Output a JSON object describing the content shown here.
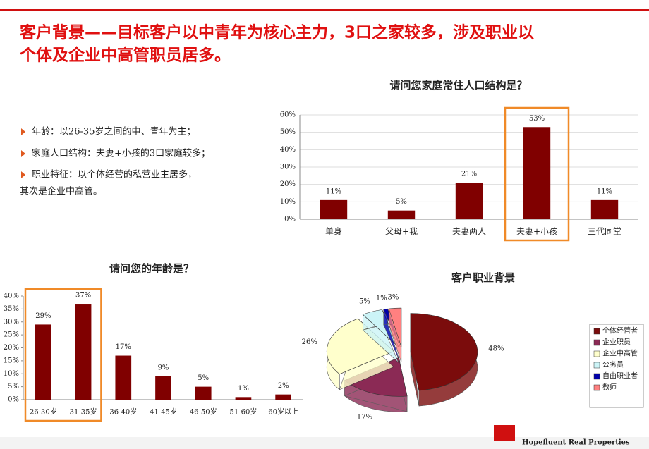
{
  "title": [
    "客户背景——目标客户以中青年为核心主力，3口之家较多，涉及职业以",
    "个体及企业中高管职员居多。"
  ],
  "bullets": [
    "年龄：以26-35岁之间的中、青年为主；",
    "家庭人口结构：夫妻+小孩的3口家庭较多；",
    "职业特征：以个体经营的私营业主居多，",
    "其次是企业中高管。"
  ],
  "logo": "Hopefluent Real Properties",
  "chart_data": [
    {
      "type": "bar",
      "title": "请问您家庭常住人口结构是？",
      "categories": [
        "单身",
        "父母+我",
        "夫妻两人",
        "夫妻+小孩",
        "三代同堂"
      ],
      "values": [
        11,
        5,
        21,
        53,
        11
      ],
      "value_labels": [
        "11%",
        "5%",
        "21%",
        "53%",
        "11%"
      ],
      "color": "#800000",
      "ylim": [
        0,
        60
      ],
      "yticks": [
        {
          "value": 0,
          "label": "0%"
        },
        {
          "value": 10,
          "label": "10%"
        },
        {
          "value": 20,
          "label": "20%"
        },
        {
          "value": 30,
          "label": "30%"
        },
        {
          "value": 40,
          "label": "40%"
        },
        {
          "value": 50,
          "label": "50%"
        },
        {
          "value": 60,
          "label": "60%"
        }
      ],
      "grid": true,
      "highlight": [
        3
      ]
    },
    {
      "type": "bar",
      "title": "请问您的年龄是？",
      "categories": [
        "26-30岁",
        "31-35岁",
        "36-40岁",
        "41-45岁",
        "46-50岁",
        "51-60岁",
        "60岁以上"
      ],
      "values": [
        29,
        37,
        17,
        9,
        5,
        1,
        2
      ],
      "value_labels": [
        "29%",
        "37%",
        "17%",
        "9%",
        "5%",
        "1%",
        "2%"
      ],
      "color": "#800000",
      "ylim": [
        0,
        40
      ],
      "yticks": [
        {
          "value": 0,
          "label": "0%"
        },
        {
          "value": 5,
          "label": "5%"
        },
        {
          "value": 10,
          "label": "10%"
        },
        {
          "value": 15,
          "label": "15%"
        },
        {
          "value": 20,
          "label": "20%"
        },
        {
          "value": 25,
          "label": "25%"
        },
        {
          "value": 30,
          "label": "30%"
        },
        {
          "value": 35,
          "label": "35%"
        },
        {
          "value": 40,
          "label": "40%"
        }
      ],
      "grid": false,
      "highlight": [
        0,
        1
      ]
    },
    {
      "type": "pie",
      "title": "客户职业背景",
      "categories": [
        "个体经营者",
        "企业职员",
        "企业中高管",
        "公务员",
        "自由职业者",
        "教师"
      ],
      "values": [
        48,
        17,
        26,
        5,
        1,
        3
      ],
      "value_labels": [
        "48%",
        "17%",
        "26%",
        "5%",
        "1%",
        "3%"
      ],
      "colors": [
        "#7b0c0c",
        "#8b2a55",
        "#ffffcc",
        "#ccf4f7",
        "#0000aa",
        "#ff8080"
      ]
    }
  ]
}
